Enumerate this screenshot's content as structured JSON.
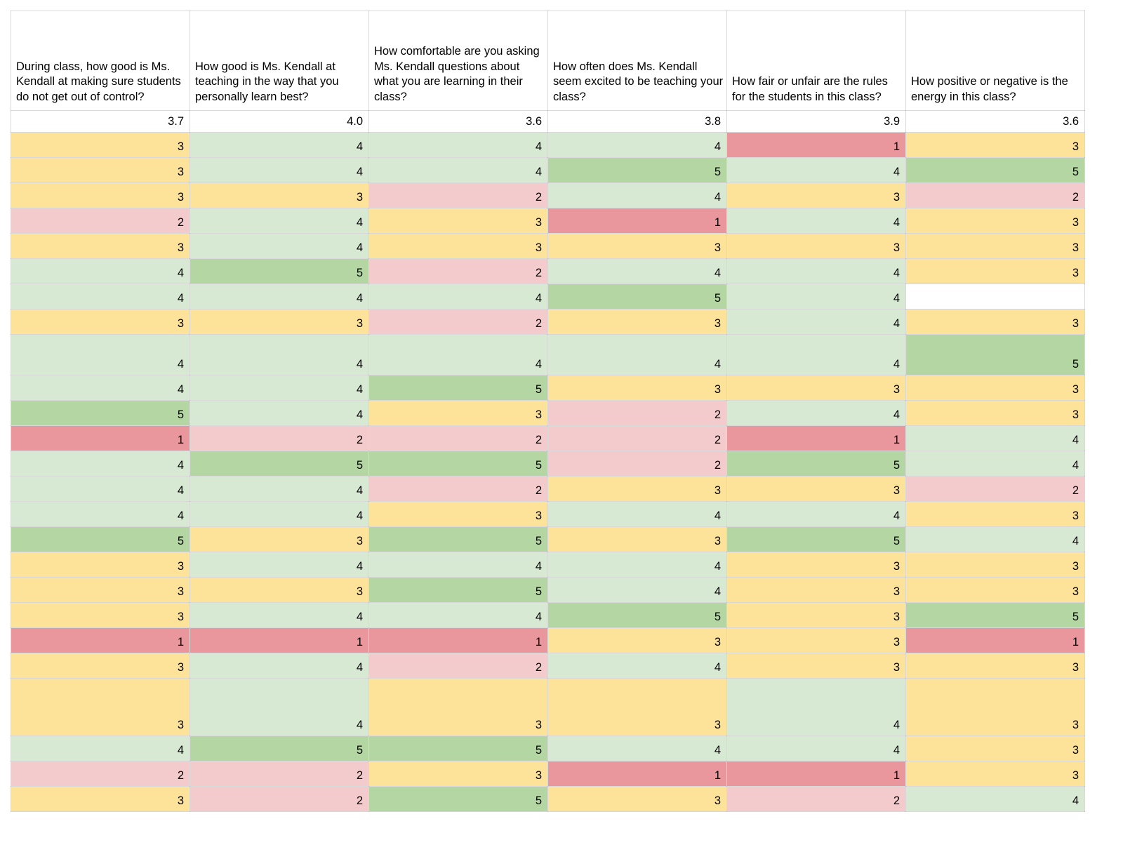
{
  "app": {
    "description": "Spreadsheet grid of student survey responses about Ms. Kendall with conditional color formatting"
  },
  "columns": [
    {
      "question": "During class, how good is Ms. Kendall at making sure students do not get out of control?",
      "average": "3.7"
    },
    {
      "question": "How good is Ms. Kendall at teaching in the way that you personally learn best?",
      "average": "4.0"
    },
    {
      "question": "How comfortable are you asking Ms. Kendall questions about what you are learning in their class?",
      "average": "3.6"
    },
    {
      "question": "How often does Ms. Kendall seem excited to be teaching your class?",
      "average": "3.8"
    },
    {
      "question": "How fair or unfair are the rules for the students in this class?",
      "average": "3.9"
    },
    {
      "question": "How positive or negative is the energy in this class?",
      "average": "3.6"
    }
  ],
  "responses": [
    [
      3,
      4,
      4,
      4,
      1,
      3
    ],
    [
      3,
      4,
      4,
      5,
      4,
      5
    ],
    [
      3,
      3,
      2,
      4,
      3,
      2
    ],
    [
      2,
      4,
      3,
      1,
      4,
      3
    ],
    [
      3,
      4,
      3,
      3,
      3,
      3
    ],
    [
      4,
      5,
      2,
      4,
      4,
      3
    ],
    [
      4,
      4,
      4,
      5,
      4,
      null
    ],
    [
      3,
      3,
      2,
      3,
      4,
      3
    ],
    [
      4,
      4,
      4,
      4,
      4,
      5
    ],
    [
      4,
      4,
      5,
      3,
      3,
      3
    ],
    [
      5,
      4,
      3,
      2,
      4,
      3
    ],
    [
      1,
      2,
      2,
      2,
      1,
      4
    ],
    [
      4,
      5,
      5,
      2,
      5,
      4
    ],
    [
      4,
      4,
      2,
      3,
      3,
      2
    ],
    [
      4,
      4,
      3,
      4,
      4,
      3
    ],
    [
      5,
      3,
      5,
      3,
      5,
      4
    ],
    [
      3,
      4,
      4,
      4,
      3,
      3
    ],
    [
      3,
      3,
      5,
      4,
      3,
      3
    ],
    [
      3,
      4,
      4,
      5,
      3,
      5
    ],
    [
      1,
      1,
      1,
      3,
      3,
      1
    ],
    [
      3,
      4,
      2,
      4,
      3,
      3
    ],
    [
      3,
      4,
      3,
      3,
      4,
      3
    ],
    [
      4,
      5,
      5,
      4,
      4,
      3
    ],
    [
      2,
      2,
      3,
      1,
      1,
      3
    ],
    [
      3,
      2,
      5,
      3,
      2,
      4
    ]
  ],
  "tall_row_indexes_a": [
    8
  ],
  "tall_row_indexes_b": [
    21
  ],
  "value_colors": {
    "1": "#E9969C",
    "2": "#F4CBCC",
    "3": "#FDE39A",
    "4": "#D8E9D3",
    "5": "#B3D6A3",
    "blank": "#FFFFFF"
  },
  "grid_style": {
    "gridline_color": "#D9D9D9",
    "page_background": "#FFFFFF",
    "text_color": "#000000"
  }
}
